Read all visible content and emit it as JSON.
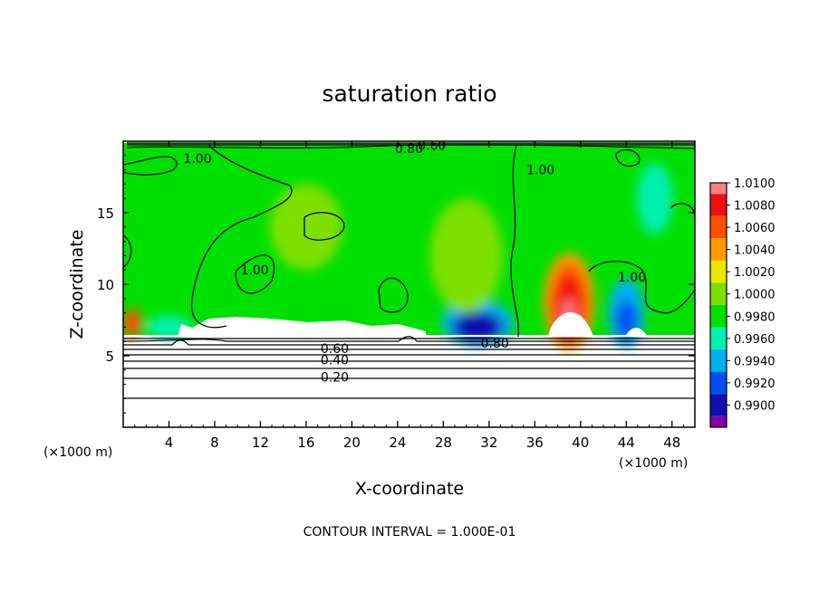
{
  "chart_data": {
    "type": "heatmap",
    "title": "saturation ratio",
    "xlabel": "X-coordinate",
    "ylabel": "Z-coordinate",
    "x_unit_left": "(×1000 m)",
    "x_unit_right": "(×1000 m)",
    "xlim": [
      0,
      50
    ],
    "ylim": [
      0,
      20
    ],
    "x_ticks": [
      "4",
      "8",
      "12",
      "16",
      "20",
      "24",
      "28",
      "32",
      "36",
      "40",
      "44",
      "48"
    ],
    "y_ticks": [
      "5",
      "10",
      "15"
    ],
    "footer": "CONTOUR INTERVAL = 1.000E-01",
    "colorbar": {
      "labels": [
        "1.0100",
        "1.0080",
        "1.0060",
        "1.0040",
        "1.0020",
        "1.0000",
        "0.9980",
        "0.9960",
        "0.9940",
        "0.9920",
        "0.9900"
      ],
      "colors": [
        "#ff8080",
        "#ee1010",
        "#ff5000",
        "#ff9a00",
        "#e8e800",
        "#7ee000",
        "#00e000",
        "#00f0b0",
        "#00b0f0",
        "#0050f0",
        "#1010b0",
        "#8000b0"
      ]
    },
    "contour_labels": [
      {
        "text": "1.00",
        "x": 6.5,
        "z": 18.8
      },
      {
        "text": "1.00",
        "x": 11.5,
        "z": 11.0
      },
      {
        "text": "1.00",
        "x": 36.5,
        "z": 18.0
      },
      {
        "text": "1.00",
        "x": 44.5,
        "z": 10.5
      },
      {
        "text": "0.80",
        "x": 25.0,
        "z": 19.5
      },
      {
        "text": "0.60",
        "x": 27.0,
        "z": 19.7
      },
      {
        "text": "0.60",
        "x": 18.5,
        "z": 5.5
      },
      {
        "text": "0.40",
        "x": 18.5,
        "z": 4.7
      },
      {
        "text": "0.20",
        "x": 18.5,
        "z": 3.5
      },
      {
        "text": "0.80",
        "x": 32.5,
        "z": 5.9
      }
    ],
    "features": [
      {
        "name": "supersaturated-core",
        "x": 39,
        "z": 8.5,
        "value": 1.01
      },
      {
        "name": "supersaturated-edge",
        "x": 0.8,
        "z": 7.2,
        "value": 1.006
      },
      {
        "name": "subsaturated-pocket",
        "x": 31,
        "z": 7.0,
        "value": 0.992
      },
      {
        "name": "subsaturated-pocket",
        "x": 43.5,
        "z": 8.0,
        "value": 0.994
      }
    ]
  }
}
